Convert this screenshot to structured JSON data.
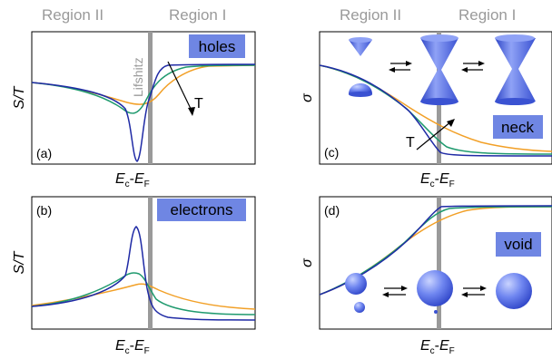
{
  "regions": {
    "left": "Region II",
    "right": "Region I"
  },
  "lifshitz_label": "Lifshitz",
  "temperature_label": "T",
  "axes": {
    "thermopower_ylabel": "S/T",
    "conductivity_ylabel": "σ",
    "xlabel_main": "E",
    "xlabel_sub_c": "c",
    "xlabel_dash": "-",
    "xlabel_sub_f": "F"
  },
  "panels": {
    "a": {
      "tag": "(a)",
      "badge": "holes"
    },
    "b": {
      "tag": "(b)",
      "badge": "electrons"
    },
    "c": {
      "tag": "(c)",
      "badge": "neck"
    },
    "d": {
      "tag": "(d)",
      "badge": "void"
    }
  },
  "colors": {
    "low_T": "#1f2aa5",
    "mid_T": "#1f9a6e",
    "high_T": "#f2a027",
    "lifshitz_line": "#9a9a9a",
    "badge": "#6f86e3",
    "shape_fill": "#5a73ea",
    "region_text": "#9a9a9a"
  },
  "icons": {
    "equilibrium_arrows": "double-arrow-icon",
    "neck_shapes": [
      "split-cone-icon",
      "hourglass-icon",
      "neck-hourglass-icon"
    ],
    "void_shapes": [
      "sphere-pair-icon",
      "sphere-with-dot-icon",
      "sphere-icon"
    ]
  }
}
